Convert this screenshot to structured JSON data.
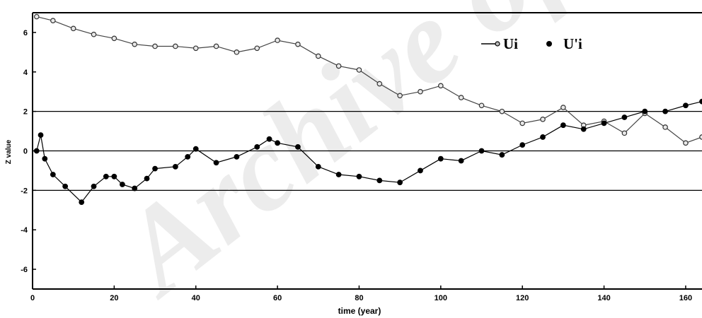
{
  "watermark": "Archive of SID",
  "chart_data": {
    "type": "line",
    "xlabel": "time (year)",
    "ylabel": "Z value",
    "xlim": [
      0,
      164
    ],
    "ylim": [
      -7,
      7
    ],
    "xticks": [
      0,
      20,
      40,
      60,
      80,
      100,
      120,
      140,
      160
    ],
    "yticks": [
      -6,
      -4,
      -2,
      0,
      2,
      4,
      6
    ],
    "reference_lines": [
      2,
      0,
      -2
    ],
    "legend_position": "top-right",
    "series": [
      {
        "name": "Ui",
        "marker": "open-circle",
        "x": [
          1,
          5,
          10,
          15,
          20,
          25,
          30,
          35,
          40,
          45,
          50,
          55,
          60,
          65,
          70,
          75,
          80,
          85,
          90,
          95,
          100,
          105,
          110,
          115,
          120,
          125,
          130,
          135,
          140,
          145,
          150,
          155,
          160,
          164
        ],
        "y": [
          6.8,
          6.6,
          6.2,
          5.9,
          5.7,
          5.4,
          5.3,
          5.3,
          5.2,
          5.3,
          5.0,
          5.2,
          5.6,
          5.4,
          4.8,
          4.3,
          4.1,
          3.4,
          2.8,
          3.0,
          3.3,
          2.7,
          2.3,
          2.0,
          1.4,
          1.6,
          2.2,
          1.3,
          1.5,
          0.9,
          1.9,
          1.2,
          0.4,
          0.7
        ]
      },
      {
        "name": "U'i",
        "marker": "filled-circle",
        "x": [
          1,
          2,
          3,
          5,
          8,
          12,
          15,
          18,
          20,
          22,
          25,
          28,
          30,
          35,
          38,
          40,
          45,
          50,
          55,
          58,
          60,
          65,
          70,
          75,
          80,
          85,
          90,
          95,
          100,
          105,
          110,
          115,
          120,
          125,
          130,
          135,
          140,
          145,
          150,
          155,
          160,
          164
        ],
        "y": [
          0.0,
          0.8,
          -0.4,
          -1.2,
          -1.8,
          -2.6,
          -1.8,
          -1.3,
          -1.3,
          -1.7,
          -1.9,
          -1.4,
          -0.9,
          -0.8,
          -0.3,
          0.1,
          -0.6,
          -0.3,
          0.2,
          0.6,
          0.4,
          0.2,
          -0.8,
          -1.2,
          -1.3,
          -1.5,
          -1.6,
          -1.0,
          -0.4,
          -0.5,
          0.0,
          -0.2,
          0.3,
          0.7,
          1.3,
          1.1,
          1.4,
          1.7,
          2.0,
          2.0,
          2.3,
          2.5
        ]
      }
    ]
  }
}
